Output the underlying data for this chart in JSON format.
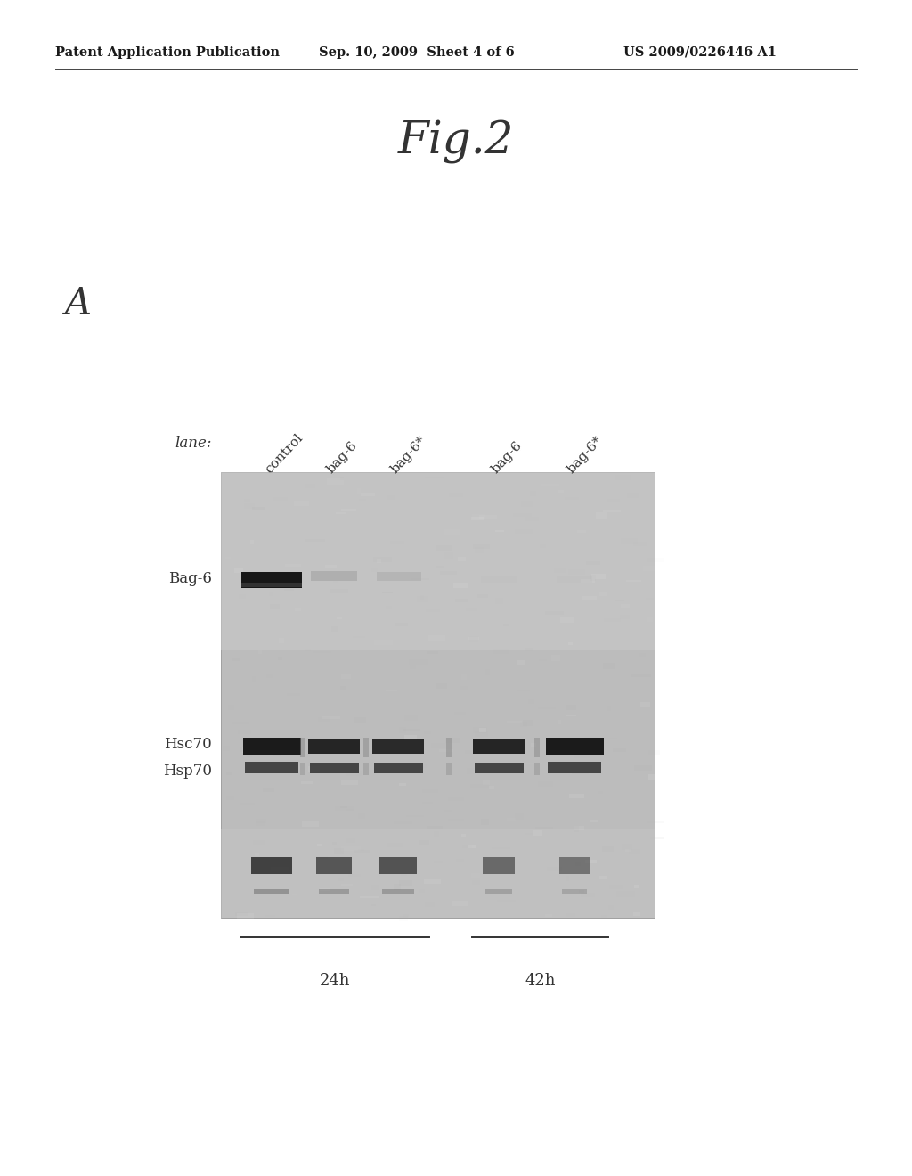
{
  "title": "Fig.2",
  "panel_label": "A",
  "header_left": "Patent Application Publication",
  "header_mid": "Sep. 10, 2009  Sheet 4 of 6",
  "header_right": "US 2009/0226446 A1",
  "lane_label": "lane:",
  "lane_names": [
    "control",
    "bag-6",
    "bag-6*",
    "bag-6",
    "bag-6*"
  ],
  "time_labels": [
    "24h",
    "42h"
  ],
  "bg_color": "#ffffff",
  "gel_bg": "#c0c0c0",
  "band_dark": "#1a1a1a",
  "band_mid": "#555555",
  "band_light": "#888888"
}
